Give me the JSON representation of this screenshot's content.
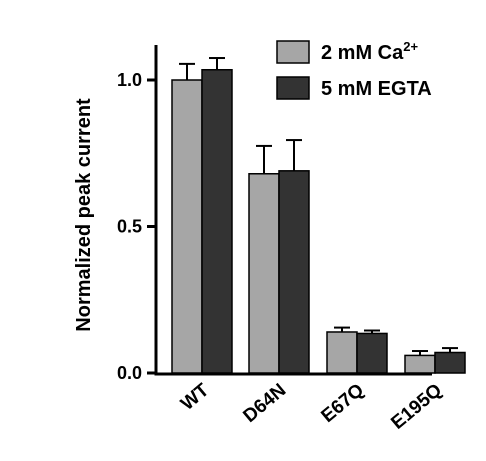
{
  "chart_data": {
    "type": "bar",
    "ylabel": "Normalized peak current",
    "xlabel": "",
    "ylim": [
      0,
      1.15
    ],
    "yticks": [
      0.0,
      0.5,
      1.0
    ],
    "ytick_labels": [
      "0.0",
      "0.5",
      "1.0"
    ],
    "categories": [
      "WT",
      "D64N",
      "E67Q",
      "E195Q"
    ],
    "legend_position": "top-right",
    "series": [
      {
        "name": "2 mM Ca",
        "name_sup": "2+",
        "color": "#a6a6a6",
        "values": [
          1.0,
          0.68,
          0.14,
          0.06
        ],
        "errors": [
          0.055,
          0.095,
          0.015,
          0.015
        ]
      },
      {
        "name": "5 mM EGTA",
        "color": "#333333",
        "values": [
          1.035,
          0.69,
          0.135,
          0.07
        ],
        "errors": [
          0.04,
          0.105,
          0.01,
          0.015
        ]
      }
    ]
  }
}
